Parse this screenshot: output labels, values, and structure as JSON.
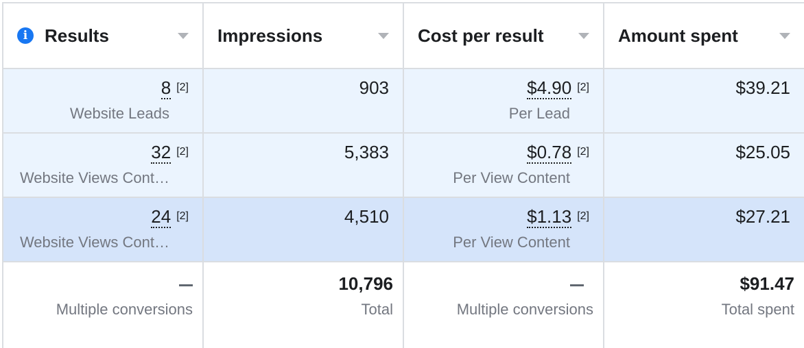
{
  "columns": [
    {
      "label": "Results",
      "icon": "info-icon"
    },
    {
      "label": "Impressions"
    },
    {
      "label": "Cost per result"
    },
    {
      "label": "Amount spent"
    }
  ],
  "rows": [
    {
      "results": "8",
      "results_note": "[2]",
      "results_type": "Website Leads",
      "impressions": "903",
      "cost": "$4.90",
      "cost_note": "[2]",
      "cost_type": "Per Lead",
      "spent": "$39.21"
    },
    {
      "results": "32",
      "results_note": "[2]",
      "results_type": "Website Views Cont…",
      "impressions": "5,383",
      "cost": "$0.78",
      "cost_note": "[2]",
      "cost_type": "Per View Content",
      "spent": "$25.05"
    },
    {
      "results": "24",
      "results_note": "[2]",
      "results_type": "Website Views Cont…",
      "impressions": "4,510",
      "cost": "$1.13",
      "cost_note": "[2]",
      "cost_type": "Per View Content",
      "spent": "$27.21"
    }
  ],
  "totals": {
    "results_sub": "Multiple conversions",
    "impressions": "10,796",
    "impressions_sub": "Total",
    "cost_sub": "Multiple conversions",
    "spent": "$91.47",
    "spent_sub": "Total spent"
  },
  "colors": {
    "accent": "#1877f2",
    "row_bg": "#ebf4fe",
    "selected_row_bg": "#d5e4fa"
  }
}
